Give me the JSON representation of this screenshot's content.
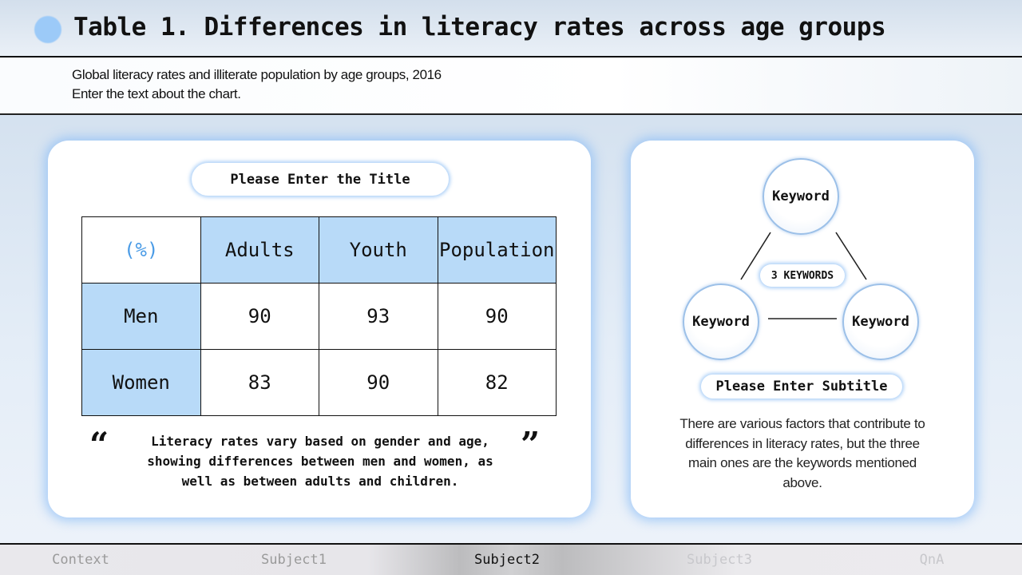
{
  "header": {
    "title": "Table 1. Differences in literacy rates across age groups",
    "accent": "#9ccaf8"
  },
  "subtitle": {
    "line1": "Global literacy rates and illiterate population by age groups, 2016",
    "line2": "Enter the text about the chart."
  },
  "left_card": {
    "title": "Please Enter the Title",
    "table": {
      "corner": "(%)",
      "columns": [
        "Adults",
        "Youth",
        "Population"
      ],
      "rows": [
        {
          "label": "Men",
          "values": [
            "90",
            "93",
            "90"
          ]
        },
        {
          "label": "Women",
          "values": [
            "83",
            "90",
            "82"
          ]
        }
      ],
      "header_fill": "#b8daf8"
    },
    "quote_open": "“",
    "quote_close": "”",
    "quote": "Literacy rates vary based on gender and age, showing differences between men and women, as well as between adults and children."
  },
  "right_card": {
    "keywords": [
      "Keyword",
      "Keyword",
      "Keyword"
    ],
    "center_label": "3 KEYWORDS",
    "subtitle": "Please Enter Subtitle",
    "paragraph": "There are various factors that contribute to differences in literacy rates, but the three main ones are the keywords mentioned above."
  },
  "nav": {
    "items": [
      "Context",
      "Subject1",
      "Subject2",
      "Subject3",
      "QnA"
    ],
    "active": "Subject2"
  }
}
